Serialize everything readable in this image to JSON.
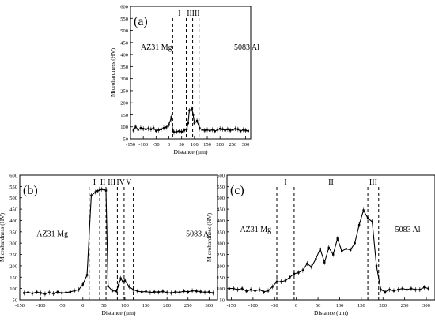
{
  "chart_data": [
    {
      "type": "line",
      "panel_label": "(a)",
      "xlabel": "Distance (μm)",
      "ylabel": "Microhardness (HV)",
      "xlim": [
        -150,
        320
      ],
      "ylim": [
        50,
        600
      ],
      "xticks": [
        -150,
        -100,
        -50,
        0,
        50,
        100,
        150,
        200,
        250,
        300
      ],
      "yticks": [
        50,
        100,
        150,
        200,
        250,
        300,
        350,
        400,
        450,
        500,
        550,
        600
      ],
      "annotations": [
        {
          "text": "AZ31 Mg",
          "x": -110,
          "y": 420
        },
        {
          "text": "5083 Al",
          "x": 255,
          "y": 420
        }
      ],
      "zones": [
        {
          "label": "I",
          "x_start": 15,
          "x_end": 68
        },
        {
          "label": "II",
          "x_start": 68,
          "x_end": 93
        },
        {
          "label": "III",
          "x_start": 93,
          "x_end": 118
        }
      ],
      "series": [
        {
          "x": [
            -138,
            -130,
            -120,
            -110,
            -100,
            -90,
            -80,
            -70,
            -60,
            -50,
            -40,
            -30,
            -20,
            -10,
            0,
            10,
            15,
            20,
            30,
            40,
            50,
            60,
            70,
            75,
            80,
            90,
            95,
            100,
            110,
            120,
            130,
            140,
            150,
            160,
            170,
            180,
            190,
            200,
            210,
            220,
            230,
            240,
            250,
            260,
            270,
            280,
            290,
            300,
            310
          ],
          "y": [
            85,
            100,
            88,
            95,
            92,
            90,
            93,
            90,
            95,
            83,
            87,
            90,
            95,
            98,
            108,
            140,
            85,
            78,
            80,
            82,
            80,
            85,
            90,
            115,
            168,
            175,
            150,
            115,
            125,
            95,
            88,
            85,
            88,
            84,
            88,
            82,
            88,
            92,
            90,
            85,
            90,
            85,
            88,
            92,
            90,
            82,
            88,
            85,
            83
          ]
        }
      ]
    },
    {
      "type": "line",
      "panel_label": "(b)",
      "xlabel": "Distance (μm)",
      "ylabel": "Microhardness (HV)",
      "xlim": [
        -150,
        320
      ],
      "ylim": [
        50,
        600
      ],
      "xticks": [
        -150,
        -100,
        -50,
        0,
        50,
        100,
        150,
        200,
        250,
        300
      ],
      "yticks": [
        50,
        100,
        150,
        200,
        250,
        300,
        350,
        400,
        450,
        500,
        550,
        600
      ],
      "annotations": [
        {
          "text": "AZ31 Mg",
          "x": -110,
          "y": 330
        },
        {
          "text": "5083 Al",
          "x": 245,
          "y": 330
        }
      ],
      "zones": [
        {
          "label": "I",
          "x_start": 15,
          "x_end": 40
        },
        {
          "label": "II",
          "x_start": 40,
          "x_end": 55
        },
        {
          "label": "III",
          "x_start": 55,
          "x_end": 82
        },
        {
          "label": "IV",
          "x_start": 82,
          "x_end": 98
        },
        {
          "label": "V",
          "x_start": 98,
          "x_end": 120
        }
      ],
      "series": [
        {
          "x": [
            -140,
            -130,
            -120,
            -110,
            -100,
            -90,
            -80,
            -70,
            -60,
            -50,
            -40,
            -30,
            -20,
            -10,
            0,
            10,
            20,
            30,
            35,
            40,
            45,
            50,
            55,
            60,
            70,
            80,
            85,
            90,
            95,
            100,
            110,
            120,
            130,
            140,
            150,
            160,
            170,
            180,
            190,
            200,
            210,
            220,
            230,
            240,
            250,
            260,
            270,
            280,
            290,
            300,
            310
          ],
          "y": [
            80,
            83,
            78,
            85,
            80,
            76,
            82,
            78,
            85,
            80,
            82,
            85,
            90,
            95,
            118,
            160,
            510,
            525,
            530,
            535,
            538,
            537,
            532,
            110,
            90,
            88,
            115,
            145,
            130,
            135,
            108,
            95,
            88,
            85,
            87,
            82,
            85,
            84,
            87,
            82,
            80,
            85,
            83,
            88,
            85,
            90,
            88,
            86,
            83,
            85,
            80
          ]
        }
      ]
    },
    {
      "type": "line",
      "panel_label": "(c)",
      "xlabel": "Distance (μm)",
      "ylabel": "Microhardness (HV)",
      "xlim": [
        -160,
        320
      ],
      "ylim": [
        50,
        600
      ],
      "xticks": [
        -150,
        -100,
        -50,
        0,
        50,
        100,
        150,
        200,
        250,
        300
      ],
      "yticks": [
        50,
        100,
        150,
        200,
        250,
        300,
        350,
        400,
        450,
        500,
        550,
        600
      ],
      "annotations": [
        {
          "text": "AZ31 Mg",
          "x": -130,
          "y": 350
        },
        {
          "text": "5083 Al",
          "x": 228,
          "y": 350
        }
      ],
      "zones": [
        {
          "label": "I",
          "x_start": -45,
          "x_end": -5
        },
        {
          "label": "II",
          "x_start": -5,
          "x_end": 165
        },
        {
          "label": "III",
          "x_start": 165,
          "x_end": 190
        }
      ],
      "series": [
        {
          "x": [
            -155,
            -145,
            -135,
            -125,
            -115,
            -105,
            -95,
            -85,
            -75,
            -65,
            -55,
            -45,
            -35,
            -25,
            -15,
            -5,
            5,
            15,
            25,
            35,
            45,
            55,
            65,
            75,
            85,
            95,
            105,
            115,
            125,
            135,
            145,
            155,
            165,
            175,
            185,
            195,
            205,
            215,
            225,
            235,
            245,
            255,
            265,
            275,
            285,
            295,
            305
          ],
          "y": [
            100,
            100,
            95,
            100,
            88,
            95,
            90,
            95,
            85,
            90,
            108,
            130,
            130,
            135,
            150,
            165,
            170,
            180,
            210,
            195,
            230,
            275,
            215,
            280,
            250,
            320,
            265,
            275,
            270,
            300,
            380,
            445,
            410,
            395,
            200,
            95,
            85,
            95,
            90,
            95,
            100,
            95,
            100,
            95,
            95,
            105,
            100
          ]
        }
      ]
    }
  ]
}
